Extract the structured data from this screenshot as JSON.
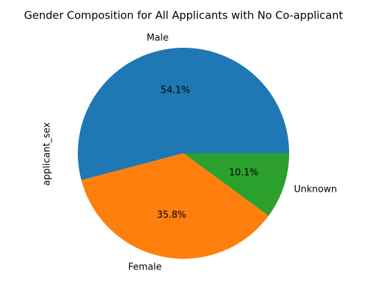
{
  "chart_data": {
    "type": "pie",
    "title": "Gender Composition for All Applicants with No Co-applicant",
    "ylabel": "applicant_sex",
    "start_angle_deg": 0,
    "direction": "counterclockwise",
    "slices": [
      {
        "label": "Male",
        "value": 54.1,
        "pct_label": "54.1%",
        "color": "#1f77b4"
      },
      {
        "label": "Female",
        "value": 35.8,
        "pct_label": "35.8%",
        "color": "#ff7f0e"
      },
      {
        "label": "Unknown",
        "value": 10.1,
        "pct_label": "10.1%",
        "color": "#2ca02c"
      }
    ]
  }
}
